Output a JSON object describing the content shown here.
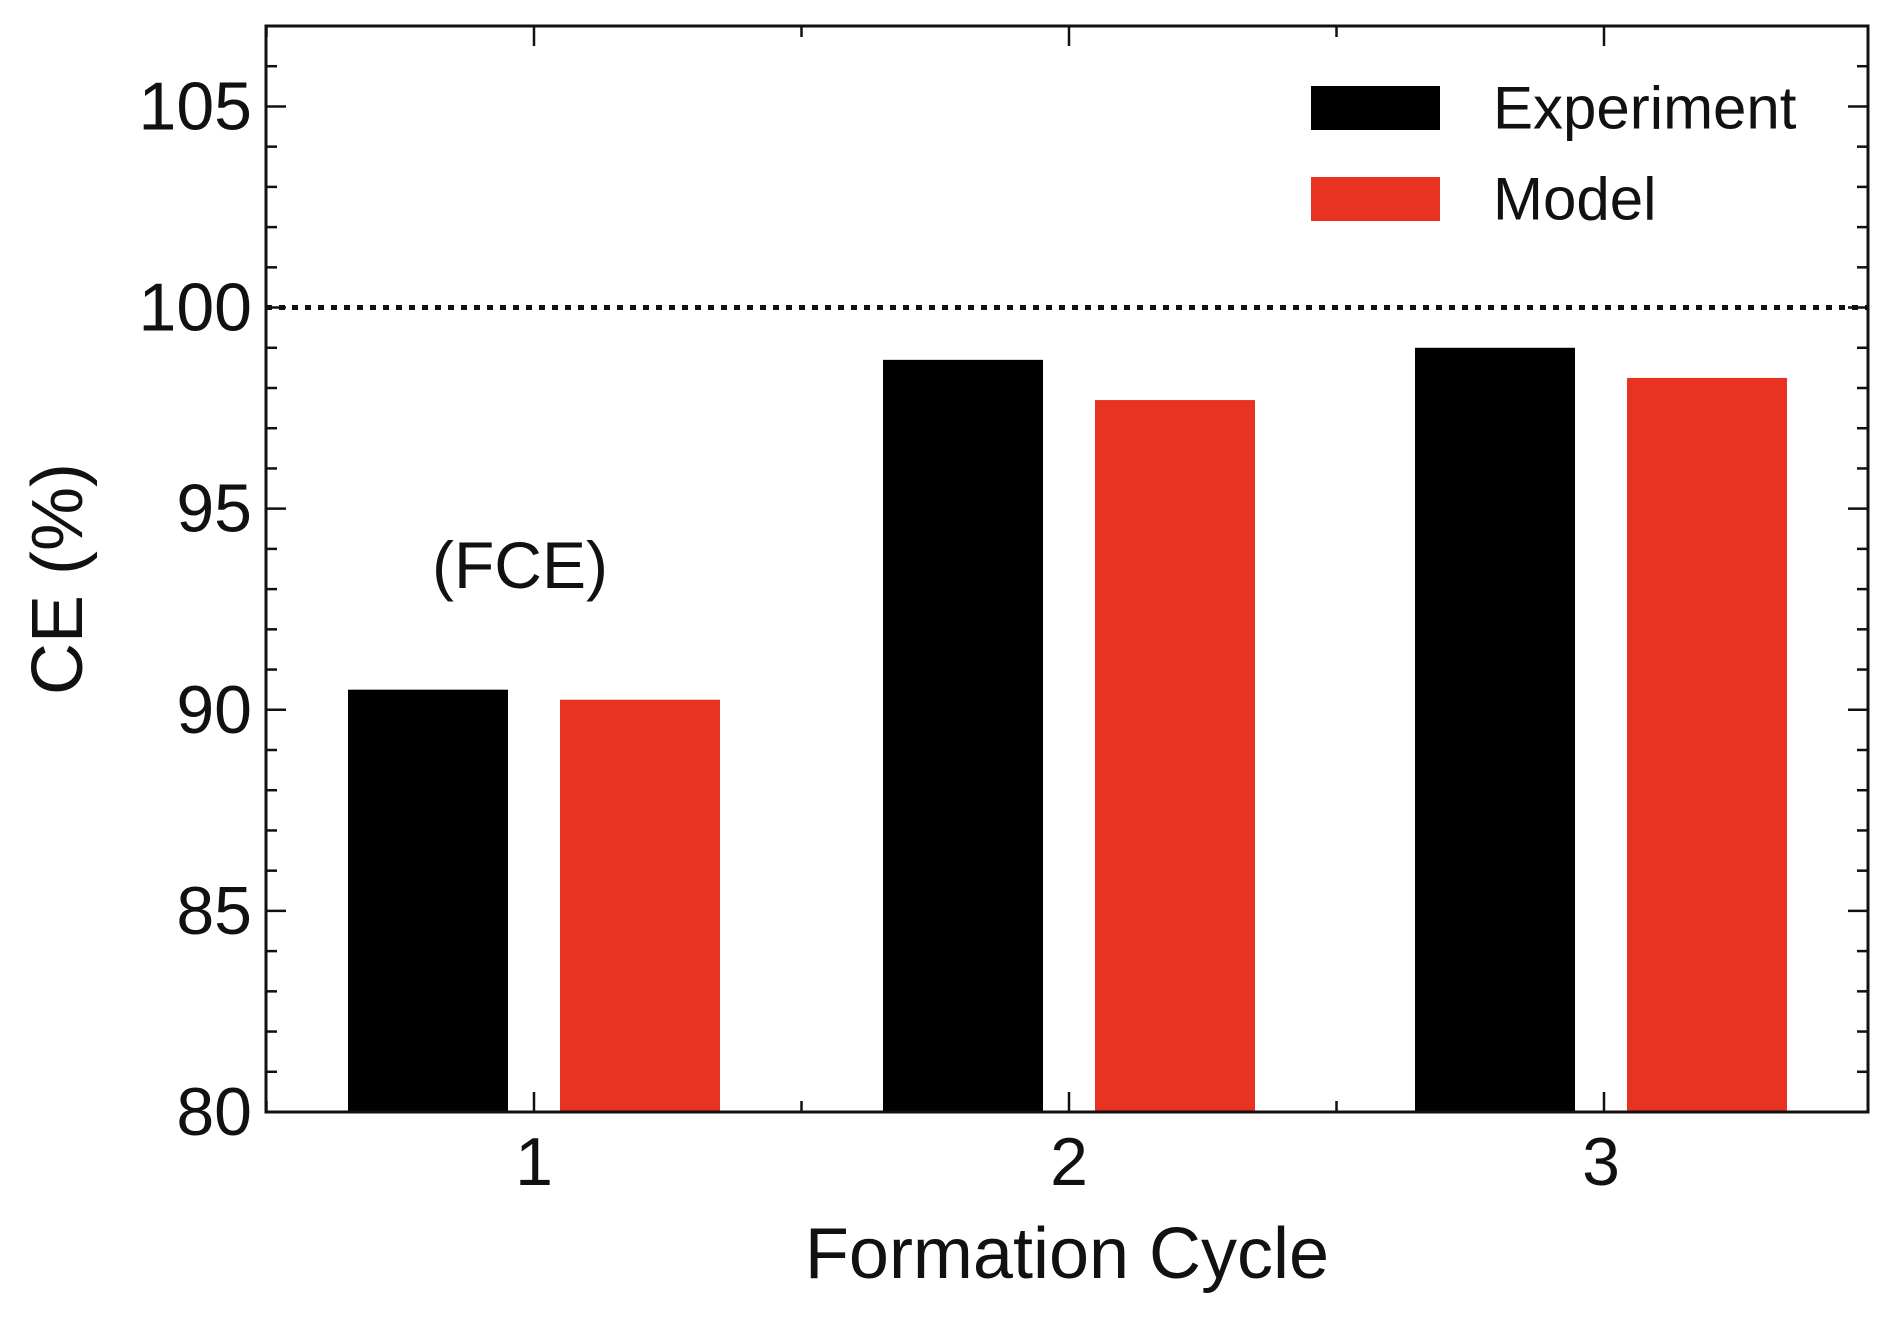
{
  "chart_data": {
    "type": "bar",
    "title": "",
    "xlabel": "Formation Cycle",
    "ylabel": "CE (%)",
    "categories": [
      "1",
      "2",
      "3"
    ],
    "series": [
      {
        "name": "Experiment",
        "color": "#000000",
        "values": [
          90.5,
          98.7,
          99.0
        ]
      },
      {
        "name": "Model",
        "color": "#e83323",
        "values": [
          90.25,
          97.7,
          98.25
        ]
      }
    ],
    "ylim": [
      80,
      107
    ],
    "yticks": [
      80,
      85,
      90,
      95,
      100,
      105
    ],
    "ytick_labels": [
      "80",
      "85",
      "90",
      "95",
      "100",
      "105"
    ],
    "yminor_step": 1,
    "xminor_step": 0.5,
    "reference_line": {
      "y": 100,
      "style": "dotted"
    },
    "annotations": [
      {
        "text": "(FCE)",
        "x": 1,
        "y": 93.6,
        "color": "#888888"
      }
    ],
    "legend": {
      "position": "top-right"
    },
    "grid": false
  }
}
